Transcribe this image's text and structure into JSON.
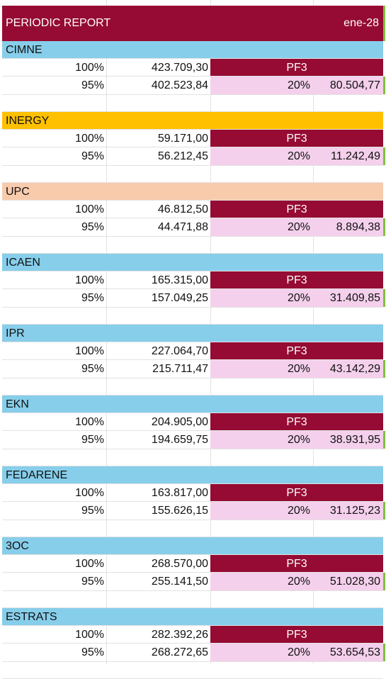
{
  "header": {
    "title": "PERIODIC REPORT",
    "date": "ene-28"
  },
  "colors": {
    "header_bg": "#950b33",
    "pf_bg": "#950b33",
    "pink_bg": "#f4d0ec",
    "blue": "#87ceeb",
    "orange": "#ffc000",
    "peach": "#f8cbad"
  },
  "blocks": [
    {
      "name": "CIMNE",
      "color": "#87ceeb",
      "pct_full": "100%",
      "total": "423.709,30",
      "pf": "PF3",
      "pct_95": "95%",
      "value_95": "402.523,84",
      "share": "20%",
      "share_value": "80.504,77"
    },
    {
      "name": "INERGY",
      "color": "#ffc000",
      "pct_full": "100%",
      "total": "59.171,00",
      "pf": "PF3",
      "pct_95": "95%",
      "value_95": "56.212,45",
      "share": "20%",
      "share_value": "11.242,49"
    },
    {
      "name": "UPC",
      "color": "#f8cbad",
      "pct_full": "100%",
      "total": "46.812,50",
      "pf": "PF3",
      "pct_95": "95%",
      "value_95": "44.471,88",
      "share": "20%",
      "share_value": "8.894,38"
    },
    {
      "name": "ICAEN",
      "color": "#87ceeb",
      "pct_full": "100%",
      "total": "165.315,00",
      "pf": "PF3",
      "pct_95": "95%",
      "value_95": "157.049,25",
      "share": "20%",
      "share_value": "31.409,85"
    },
    {
      "name": "IPR",
      "color": "#87ceeb",
      "pct_full": "100%",
      "total": "227.064,70",
      "pf": "PF3",
      "pct_95": "95%",
      "value_95": "215.711,47",
      "share": "20%",
      "share_value": "43.142,29"
    },
    {
      "name": "EKN",
      "color": "#87ceeb",
      "pct_full": "100%",
      "total": "204.905,00",
      "pf": "PF3",
      "pct_95": "95%",
      "value_95": "194.659,75",
      "share": "20%",
      "share_value": "38.931,95"
    },
    {
      "name": "FEDARENE",
      "color": "#87ceeb",
      "pct_full": "100%",
      "total": "163.817,00",
      "pf": "PF3",
      "pct_95": "95%",
      "value_95": "155.626,15",
      "share": "20%",
      "share_value": "31.125,23"
    },
    {
      "name": "3OC",
      "color": "#87ceeb",
      "pct_full": "100%",
      "total": "268.570,00",
      "pf": "PF3",
      "pct_95": "95%",
      "value_95": "255.141,50",
      "share": "20%",
      "share_value": "51.028,30"
    },
    {
      "name": "ESTRATS",
      "color": "#87ceeb",
      "pct_full": "100%",
      "total": "282.392,26",
      "pf": "PF3",
      "pct_95": "95%",
      "value_95": "268.272,65",
      "share": "20%",
      "share_value": "53.654,53"
    }
  ]
}
